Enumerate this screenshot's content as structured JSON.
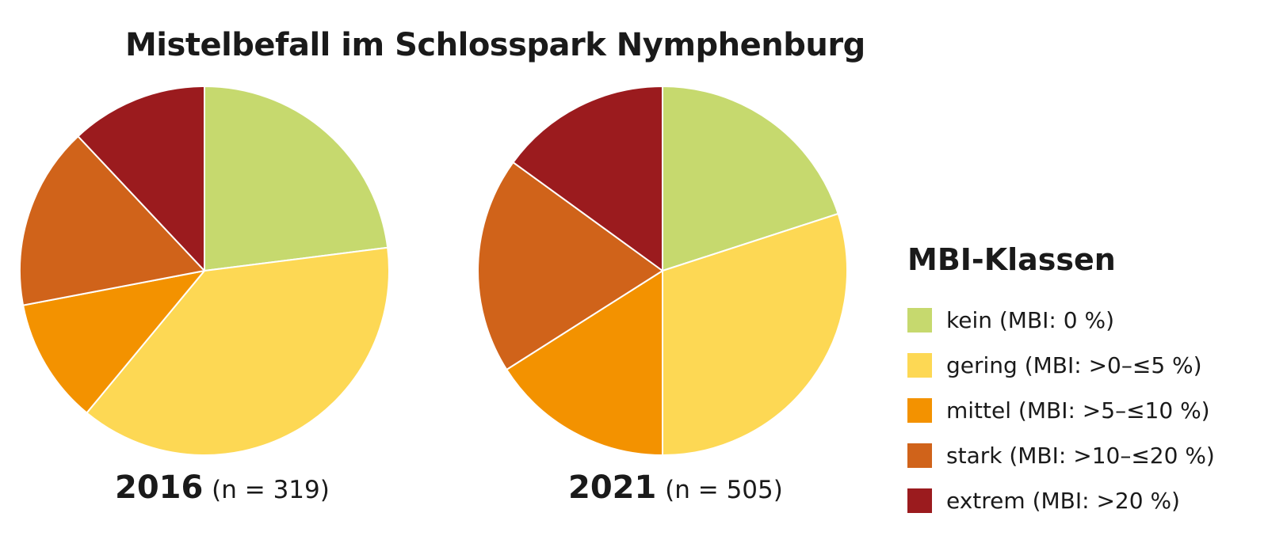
{
  "chart_data": {
    "type": "pie",
    "title": "Mistelbefall im Schlosspark Nymphenburg",
    "legend_title": "MBI-Klassen",
    "legend_placement": "right",
    "categories": [
      "kein (MBI: 0 %)",
      "gering (MBI: >0–≤5 %)",
      "mittel (MBI: >5–≤10 %)",
      "stark (MBI: >10–≤20 %)",
      "extrem (MBI: >20 %)"
    ],
    "colors": [
      "#c6d96e",
      "#fdd854",
      "#f39200",
      "#d0631a",
      "#9b1b1e"
    ],
    "pies": [
      {
        "year": "2016",
        "n_label": "(n = 319)",
        "values": [
          23,
          38,
          11,
          16,
          12
        ]
      },
      {
        "year": "2021",
        "n_label": "(n = 505)",
        "values": [
          20,
          30,
          16,
          19,
          15
        ]
      }
    ]
  }
}
